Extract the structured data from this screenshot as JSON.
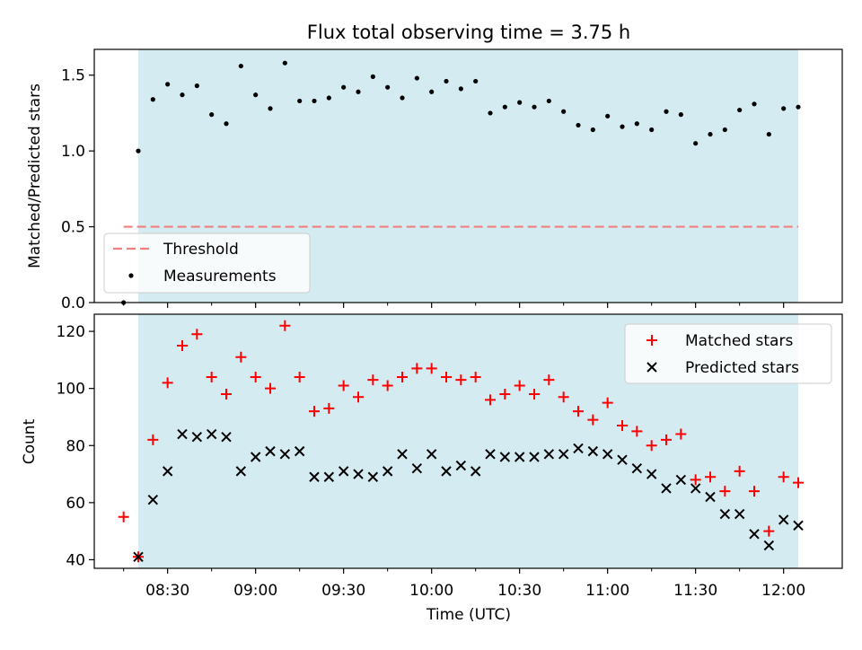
{
  "chart_data": [
    {
      "type": "scatter",
      "title": "Flux total observing time = 3.75 h",
      "xlabel": "",
      "ylabel": "Matched/Predicted stars",
      "ylim": [
        0,
        1.67
      ],
      "yticks": [
        0.0,
        0.5,
        1.0,
        1.5
      ],
      "ytick_labels": [
        "0.0",
        "0.5",
        "1.0",
        "1.5"
      ],
      "xlim": [
        "08:05",
        "12:20"
      ],
      "observing_window": [
        "08:20",
        "12:05"
      ],
      "shading_color": "#d4ebf1",
      "legend": {
        "position": "lower-left",
        "entries": [
          "Threshold",
          "Measurements"
        ]
      },
      "threshold": {
        "name": "Threshold",
        "value": 0.5,
        "from": "08:15",
        "to": "12:05",
        "color": "#f08080"
      },
      "series": [
        {
          "name": "Measurements",
          "marker": "dot",
          "color": "#000000",
          "x": [
            "08:15",
            "08:20",
            "08:25",
            "08:30",
            "08:35",
            "08:40",
            "08:45",
            "08:50",
            "08:55",
            "09:00",
            "09:05",
            "09:10",
            "09:15",
            "09:20",
            "09:25",
            "09:30",
            "09:35",
            "09:40",
            "09:45",
            "09:50",
            "09:55",
            "10:00",
            "10:05",
            "10:10",
            "10:15",
            "10:20",
            "10:25",
            "10:30",
            "10:35",
            "10:40",
            "10:45",
            "10:50",
            "10:55",
            "11:00",
            "11:05",
            "11:10",
            "11:15",
            "11:20",
            "11:25",
            "11:30",
            "11:35",
            "11:40",
            "11:45",
            "11:50",
            "11:55",
            "12:00",
            "12:05"
          ],
          "y": [
            0.0,
            1.0,
            1.34,
            1.44,
            1.37,
            1.43,
            1.24,
            1.18,
            1.56,
            1.37,
            1.28,
            1.58,
            1.33,
            1.33,
            1.35,
            1.42,
            1.39,
            1.49,
            1.42,
            1.35,
            1.48,
            1.39,
            1.46,
            1.41,
            1.46,
            1.25,
            1.29,
            1.32,
            1.29,
            1.33,
            1.26,
            1.17,
            1.14,
            1.23,
            1.16,
            1.18,
            1.14,
            1.26,
            1.24,
            1.05,
            1.11,
            1.14,
            1.27,
            1.31,
            1.11,
            1.28,
            1.29
          ]
        }
      ]
    },
    {
      "type": "scatter",
      "title": "",
      "xlabel": "Time (UTC)",
      "ylabel": "Count",
      "ylim": [
        37,
        126
      ],
      "yticks": [
        40,
        60,
        80,
        100,
        120
      ],
      "ytick_labels": [
        "40",
        "60",
        "80",
        "100",
        "120"
      ],
      "xlim": [
        "08:05",
        "12:20"
      ],
      "xticks": [
        "08:30",
        "09:00",
        "09:30",
        "10:00",
        "10:30",
        "11:00",
        "11:30",
        "12:00"
      ],
      "minor_xticks": [
        "08:15",
        "08:45",
        "09:15",
        "09:45",
        "10:15",
        "10:45",
        "11:15",
        "11:45"
      ],
      "observing_window": [
        "08:20",
        "12:05"
      ],
      "shading_color": "#d4ebf1",
      "legend": {
        "position": "upper-right",
        "entries": [
          "Matched stars",
          "Predicted stars"
        ]
      },
      "series": [
        {
          "name": "Matched stars",
          "marker": "plus",
          "color": "#ff0000",
          "x": [
            "08:15",
            "08:20",
            "08:25",
            "08:30",
            "08:35",
            "08:40",
            "08:45",
            "08:50",
            "08:55",
            "09:00",
            "09:05",
            "09:10",
            "09:15",
            "09:20",
            "09:25",
            "09:30",
            "09:35",
            "09:40",
            "09:45",
            "09:50",
            "09:55",
            "10:00",
            "10:05",
            "10:10",
            "10:15",
            "10:20",
            "10:25",
            "10:30",
            "10:35",
            "10:40",
            "10:45",
            "10:50",
            "10:55",
            "11:00",
            "11:05",
            "11:10",
            "11:15",
            "11:20",
            "11:25",
            "11:30",
            "11:35",
            "11:40",
            "11:45",
            "11:50",
            "11:55",
            "12:00",
            "12:05"
          ],
          "y": [
            55,
            41,
            82,
            102,
            115,
            119,
            104,
            98,
            111,
            104,
            100,
            122,
            104,
            92,
            93,
            101,
            97,
            103,
            101,
            104,
            107,
            107,
            104,
            103,
            104,
            96,
            98,
            101,
            98,
            103,
            97,
            92,
            89,
            95,
            87,
            85,
            80,
            82,
            84,
            68,
            69,
            64,
            71,
            64,
            50,
            69,
            67
          ]
        },
        {
          "name": "Predicted stars",
          "marker": "x",
          "color": "#000000",
          "x": [
            "08:20",
            "08:25",
            "08:30",
            "08:35",
            "08:40",
            "08:45",
            "08:50",
            "08:55",
            "09:00",
            "09:05",
            "09:10",
            "09:15",
            "09:20",
            "09:25",
            "09:30",
            "09:35",
            "09:40",
            "09:45",
            "09:50",
            "09:55",
            "10:00",
            "10:05",
            "10:10",
            "10:15",
            "10:20",
            "10:25",
            "10:30",
            "10:35",
            "10:40",
            "10:45",
            "10:50",
            "10:55",
            "11:00",
            "11:05",
            "11:10",
            "11:15",
            "11:20",
            "11:25",
            "11:30",
            "11:35",
            "11:40",
            "11:45",
            "11:50",
            "11:55",
            "12:00",
            "12:05"
          ],
          "y": [
            41,
            61,
            71,
            84,
            83,
            84,
            83,
            71,
            76,
            78,
            77,
            78,
            69,
            69,
            71,
            70,
            69,
            71,
            77,
            72,
            77,
            71,
            73,
            71,
            77,
            76,
            76,
            76,
            77,
            77,
            79,
            78,
            77,
            75,
            72,
            70,
            65,
            68,
            65,
            62,
            56,
            56,
            49,
            45,
            54,
            52
          ]
        }
      ]
    }
  ]
}
